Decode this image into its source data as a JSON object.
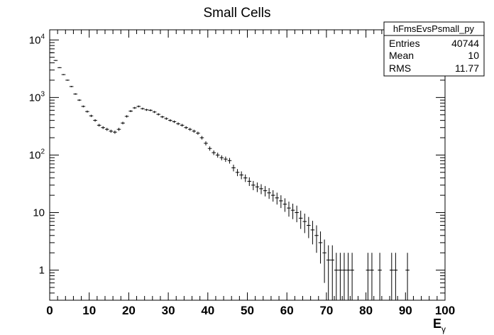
{
  "chart_data": {
    "type": "scatter",
    "title": "Small Cells",
    "xlabel": "E",
    "xlabel_sub": "γ",
    "ylabel": "",
    "xlim": [
      0,
      100
    ],
    "ylim": [
      0.3,
      15000
    ],
    "y_scale": "log",
    "grid": false,
    "x_ticks": [
      0,
      10,
      20,
      30,
      40,
      50,
      60,
      70,
      80,
      90,
      100
    ],
    "x_tick_labels": [
      "0",
      "10",
      "20",
      "30",
      "40",
      "50",
      "60",
      "70",
      "80",
      "90",
      "100"
    ],
    "y_ticks": [
      1,
      10,
      100,
      1000,
      10000
    ],
    "y_tick_labels": [
      {
        "base": "1",
        "exp": ""
      },
      {
        "base": "10",
        "exp": ""
      },
      {
        "base": "10",
        "exp": "2"
      },
      {
        "base": "10",
        "exp": "3"
      },
      {
        "base": "10",
        "exp": "4"
      }
    ],
    "bin_width": 1,
    "stats": {
      "name": "hFmsEvsPsmall_py",
      "rows": [
        {
          "label": "Entries",
          "value": "40744"
        },
        {
          "label": "Mean",
          "value": "10"
        },
        {
          "label": "RMS",
          "value": "11.77"
        }
      ]
    },
    "series": [
      {
        "x": [
          0.5,
          1.5,
          2.5,
          3.5,
          4.5,
          5.5,
          6.5,
          7.5,
          8.5,
          9.5,
          10.5,
          11.5,
          12.5,
          13.5,
          14.5,
          15.5,
          16.5,
          17.5,
          18.5,
          19.5,
          20.5,
          21.5,
          22.5,
          23.5,
          24.5,
          25.5,
          26.5,
          27.5,
          28.5,
          29.5,
          30.5,
          31.5,
          32.5,
          33.5,
          34.5,
          35.5,
          36.5,
          37.5,
          38.5,
          39.5,
          40.5,
          41.5,
          42.5,
          43.5,
          44.5,
          45.5,
          46.5,
          47.5,
          48.5,
          49.5,
          50.5,
          51.5,
          52.5,
          53.5,
          54.5,
          55.5,
          56.5,
          57.5,
          58.5,
          59.5,
          60.5,
          61.5,
          62.5,
          63.5,
          64.5,
          65.5,
          66.5,
          67.5,
          68.5,
          69.5,
          70.5,
          71.5,
          72.5,
          73.5,
          74.5,
          75.5,
          76.5,
          80.5,
          81.5,
          83.5,
          86.5,
          87.5,
          90.5
        ],
        "y": [
          6000,
          4400,
          3300,
          2500,
          2000,
          1550,
          1150,
          900,
          700,
          570,
          480,
          400,
          330,
          300,
          280,
          260,
          250,
          280,
          360,
          470,
          580,
          660,
          700,
          640,
          610,
          600,
          560,
          510,
          460,
          430,
          400,
          380,
          350,
          330,
          300,
          280,
          260,
          240,
          200,
          160,
          130,
          110,
          100,
          90,
          85,
          80,
          60,
          50,
          45,
          40,
          35,
          30,
          28,
          26,
          24,
          22,
          20,
          18,
          16,
          14,
          12,
          11,
          10,
          8,
          7,
          6,
          5,
          4,
          3,
          2,
          1.5,
          1.5,
          1,
          1,
          1,
          1,
          1,
          1,
          1,
          1,
          1,
          1,
          1
        ],
        "yerr_lo": [
          80,
          66,
          57,
          50,
          45,
          39,
          34,
          30,
          26,
          24,
          22,
          20,
          18,
          17,
          17,
          16,
          16,
          17,
          19,
          22,
          24,
          26,
          26,
          25,
          25,
          24,
          24,
          23,
          21,
          21,
          20,
          19,
          19,
          18,
          17,
          17,
          16,
          15,
          14,
          13,
          11,
          10,
          10,
          9,
          9,
          9,
          8,
          7,
          7,
          6,
          6,
          5.5,
          5.3,
          5.1,
          4.9,
          4.7,
          4.5,
          4.2,
          4,
          3.7,
          3.5,
          3.3,
          3.2,
          2.8,
          2.6,
          2.4,
          2.2,
          2,
          1.7,
          1.4,
          1.2,
          1.2,
          1,
          1,
          1,
          1,
          1,
          1,
          1,
          1,
          1,
          1,
          1
        ]
      }
    ]
  }
}
